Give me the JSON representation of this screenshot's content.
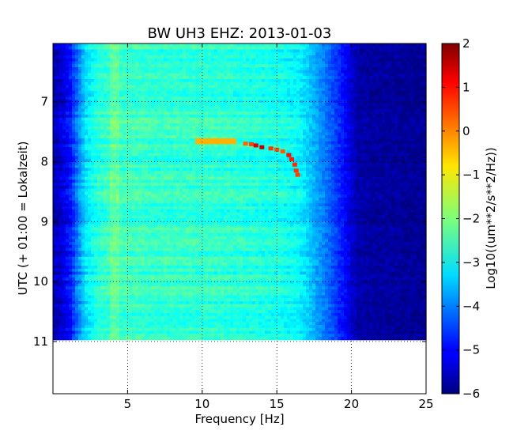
{
  "chart_data": {
    "type": "heatmap",
    "title": "BW UH3 EHZ: 2013-01-03",
    "xlabel": "Frequency [Hz]",
    "ylabel": "UTC (+ 01:00 = Lokalzeit)",
    "xlim": [
      0,
      25
    ],
    "ylim": [
      11.87,
      6.03
    ],
    "x_ticks": [
      5,
      10,
      15,
      20,
      25
    ],
    "y_ticks": [
      7,
      8,
      9,
      10,
      11
    ],
    "data_end_time": 10.97,
    "grid": true,
    "colormap": "jet",
    "colorbar": {
      "label": "Log10((um**2/s**2/Hz))",
      "range": [
        -6,
        2
      ],
      "ticks": [
        -6,
        -5,
        -4,
        -3,
        -2,
        -1,
        0,
        1,
        2
      ]
    },
    "spectral_profile": {
      "frequency_hz": [
        0,
        0.6,
        1.2,
        1.8,
        2.2,
        3,
        4,
        5,
        7,
        10,
        13,
        15,
        16.5,
        17.5,
        18.5,
        19.5,
        20.5,
        25
      ],
      "log10_power": [
        -5.6,
        -5.3,
        -4.8,
        -3.8,
        -3.2,
        -2.7,
        -2.5,
        -2.5,
        -2.6,
        -2.6,
        -2.7,
        -2.8,
        -3.0,
        -3.6,
        -4.2,
        -4.9,
        -5.7,
        -5.85
      ]
    },
    "signal_track": {
      "time_utc": [
        7.7,
        7.71,
        7.73,
        7.76,
        7.78,
        7.8,
        7.83,
        7.89,
        7.96,
        8.05,
        8.15,
        8.22
      ],
      "frequency_hz": [
        12.9,
        13.3,
        13.6,
        14.0,
        14.6,
        15.0,
        15.4,
        15.8,
        16.0,
        16.2,
        16.3,
        16.4
      ],
      "log10_power": [
        0.2,
        0.5,
        1.3,
        1.5,
        0.6,
        0.4,
        0.3,
        0.9,
        0.8,
        0.7,
        0.6,
        0.5
      ]
    },
    "bright_band": {
      "time_utc": 7.65,
      "frequency_range_hz": [
        9.5,
        12.3
      ],
      "log10_power": -0.4
    }
  }
}
